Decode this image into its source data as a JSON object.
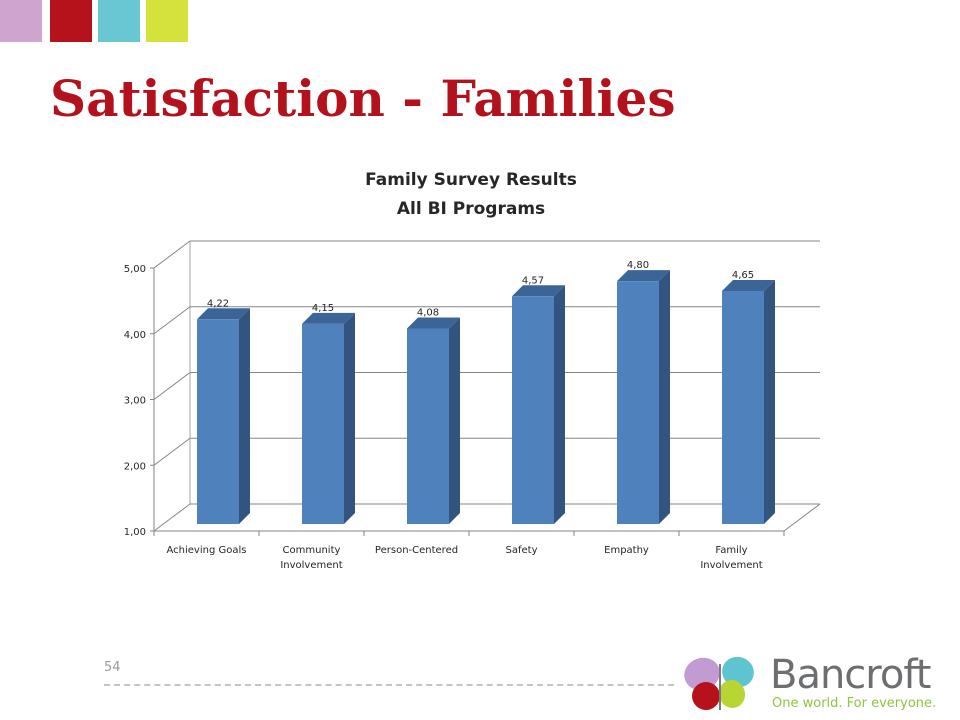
{
  "slide": {
    "title": "Satisfaction - Families",
    "page_number": "54",
    "accent_colors": [
      "#cfa5cf",
      "#b5121b",
      "#69c7d4",
      "#d5e23c"
    ]
  },
  "chart_data": {
    "type": "bar",
    "title": "Family Survey Results",
    "subtitle": "All BI Programs",
    "categories": [
      [
        "Achieving Goals"
      ],
      [
        "Community",
        "Involvement"
      ],
      [
        "Person-Centered"
      ],
      [
        "Safety"
      ],
      [
        "Empathy"
      ],
      [
        "Family",
        "Involvement"
      ]
    ],
    "values": [
      4.22,
      4.15,
      4.08,
      4.57,
      4.8,
      4.65
    ],
    "value_labels": [
      "4,22",
      "4,15",
      "4,08",
      "4,57",
      "4,80",
      "4,65"
    ],
    "y_ticks": [
      "1,00",
      "2,00",
      "3,00",
      "4,00",
      "5,00"
    ],
    "ylim": [
      1,
      5
    ],
    "xlabel": "",
    "ylabel": "",
    "grid": true,
    "legend": "none",
    "bar_color": "#4f81bd",
    "bar_side_color": "#33547f",
    "bar_top_color": "#3c6597"
  },
  "logo": {
    "name": "Bancroft",
    "tagline": "One world. For everyone."
  }
}
